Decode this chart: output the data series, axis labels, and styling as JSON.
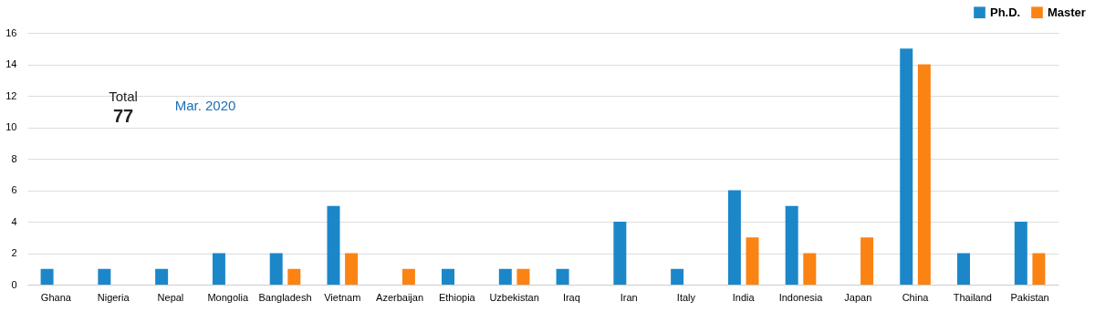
{
  "chart_data": {
    "type": "bar",
    "categories": [
      "Ghana",
      "Nigeria",
      "Nepal",
      "Mongolia",
      "Bangladesh",
      "Vietnam",
      "Azerbaijan",
      "Ethiopia",
      "Uzbekistan",
      "Iraq",
      "Iran",
      "Italy",
      "India",
      "Indonesia",
      "Japan",
      "China",
      "Thailand",
      "Pakistan"
    ],
    "series": [
      {
        "name": "Ph.D.",
        "color": "#1b87c9",
        "values": [
          1,
          1,
          1,
          2,
          2,
          5,
          null,
          1,
          1,
          1,
          4,
          1,
          6,
          5,
          null,
          15,
          2,
          4
        ]
      },
      {
        "name": "Master",
        "color": "#fb8313",
        "values": [
          null,
          null,
          null,
          null,
          1,
          2,
          1,
          null,
          1,
          null,
          null,
          null,
          3,
          2,
          3,
          14,
          null,
          2
        ]
      }
    ],
    "ylim": [
      0,
      16
    ],
    "yticks": [
      0,
      2,
      4,
      6,
      8,
      10,
      12,
      14,
      16
    ],
    "grid": "y",
    "legend": "top right",
    "annotations": [
      "Total",
      "77",
      "Mar. 2020"
    ]
  }
}
